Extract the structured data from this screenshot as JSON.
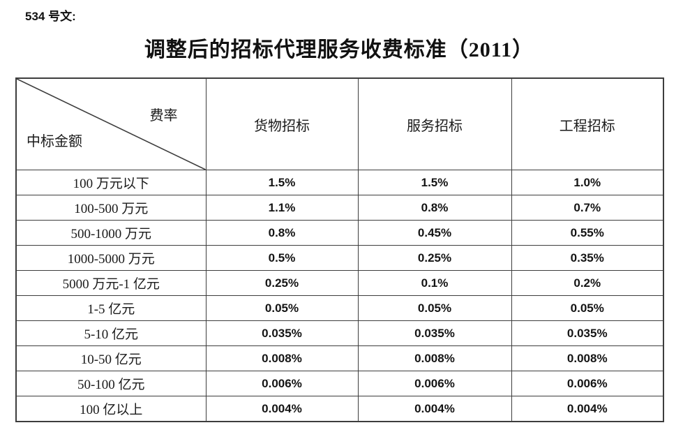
{
  "page": {
    "doc_label": "534 号文:",
    "title": "调整后的招标代理服务收费标准（2011）"
  },
  "colors": {
    "border": "#3d3d3d",
    "text": "#1a1a1a",
    "background": "#ffffff"
  },
  "table": {
    "corner": {
      "top_right": "费率",
      "bottom_left": "中标金额"
    },
    "columns": [
      "货物招标",
      "服务招标",
      "工程招标"
    ],
    "rows": [
      {
        "label": "100 万元以下",
        "values": [
          "1.5%",
          "1.5%",
          "1.0%"
        ]
      },
      {
        "label": "100-500 万元",
        "values": [
          "1.1%",
          "0.8%",
          "0.7%"
        ]
      },
      {
        "label": "500-1000 万元",
        "values": [
          "0.8%",
          "0.45%",
          "0.55%"
        ]
      },
      {
        "label": "1000-5000 万元",
        "values": [
          "0.5%",
          "0.25%",
          "0.35%"
        ]
      },
      {
        "label": "5000 万元-1 亿元",
        "values": [
          "0.25%",
          "0.1%",
          "0.2%"
        ]
      },
      {
        "label": "1-5 亿元",
        "values": [
          "0.05%",
          "0.05%",
          "0.05%"
        ]
      },
      {
        "label": "5-10 亿元",
        "values": [
          "0.035%",
          "0.035%",
          "0.035%"
        ]
      },
      {
        "label": "10-50 亿元",
        "values": [
          "0.008%",
          "0.008%",
          "0.008%"
        ]
      },
      {
        "label": "50-100 亿元",
        "values": [
          "0.006%",
          "0.006%",
          "0.006%"
        ]
      },
      {
        "label": "100 亿以上",
        "values": [
          "0.004%",
          "0.004%",
          "0.004%"
        ]
      }
    ]
  }
}
